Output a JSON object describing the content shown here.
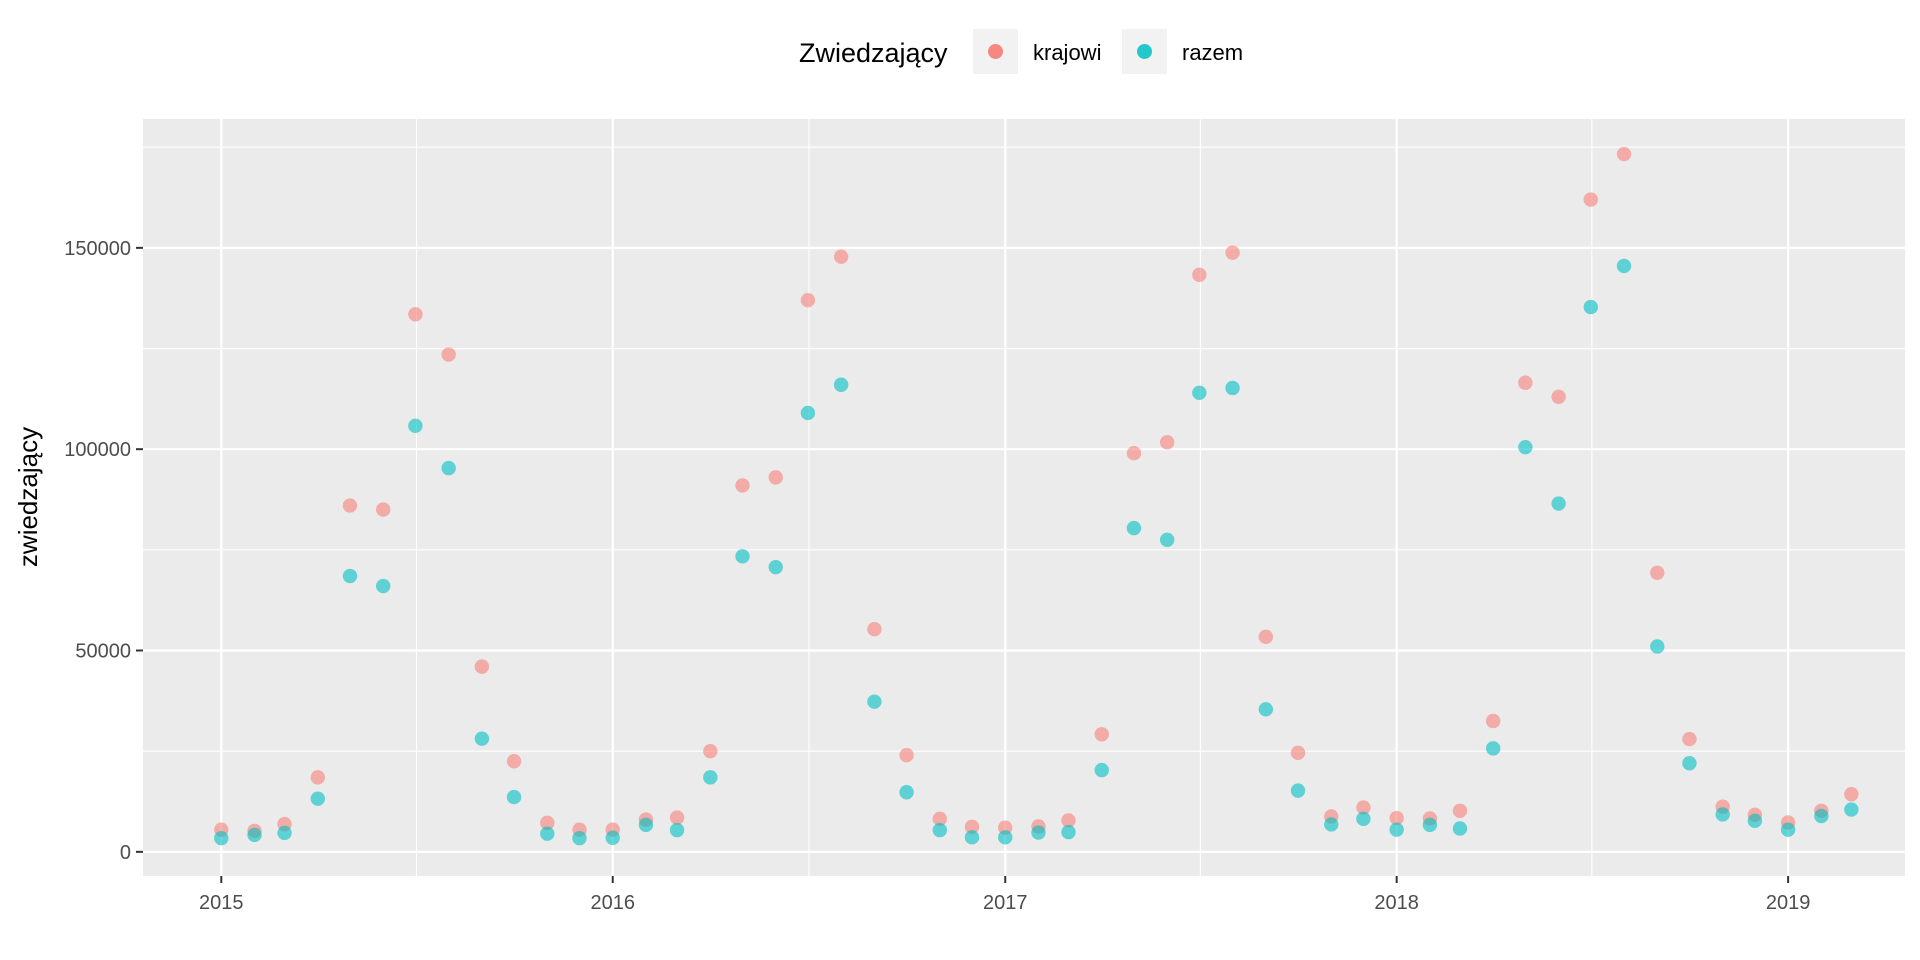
{
  "chart_data": {
    "type": "scatter",
    "title": "",
    "xlabel": "",
    "ylabel": "zwiedzający",
    "legend": {
      "title": "Zwiedzający",
      "position": "top"
    },
    "x_ticks": [
      "2015",
      "2016",
      "2017",
      "2018",
      "2019"
    ],
    "y_ticks": [
      0,
      50000,
      100000,
      150000
    ],
    "y_tick_labels": [
      "0",
      "50000",
      "100000",
      "150000"
    ],
    "xlim": [
      "2014-10-20",
      "2019-04-20"
    ],
    "ylim": [
      -6000,
      182000
    ],
    "grid": true,
    "x": [
      "2015-01",
      "2015-02",
      "2015-03",
      "2015-04",
      "2015-05",
      "2015-06",
      "2015-07",
      "2015-08",
      "2015-09",
      "2015-10",
      "2015-11",
      "2015-12",
      "2016-01",
      "2016-02",
      "2016-03",
      "2016-04",
      "2016-05",
      "2016-06",
      "2016-07",
      "2016-08",
      "2016-09",
      "2016-10",
      "2016-11",
      "2016-12",
      "2017-01",
      "2017-02",
      "2017-03",
      "2017-04",
      "2017-05",
      "2017-06",
      "2017-07",
      "2017-08",
      "2017-09",
      "2017-10",
      "2017-11",
      "2017-12",
      "2018-01",
      "2018-02",
      "2018-03",
      "2018-04",
      "2018-05",
      "2018-06",
      "2018-07",
      "2018-08",
      "2018-09",
      "2018-10",
      "2018-11",
      "2018-12",
      "2019-01",
      "2019-02",
      "2019-03"
    ],
    "series": [
      {
        "name": "krajowi",
        "color": "#F8766D",
        "values": [
          5500,
          5200,
          6900,
          18500,
          86000,
          85000,
          133500,
          123500,
          46000,
          22500,
          7200,
          5500,
          5500,
          8000,
          8500,
          25000,
          91000,
          93000,
          137000,
          147800,
          55300,
          24000,
          8200,
          6200,
          6000,
          6300,
          7800,
          29200,
          99000,
          101700,
          143300,
          148800,
          53400,
          24600,
          8800,
          11000,
          8400,
          8300,
          10200,
          32500,
          116500,
          113000,
          162000,
          173300,
          69300,
          28000,
          11200,
          9200,
          7300,
          10200,
          14300
        ]
      },
      {
        "name": "razem",
        "color": "#00BFC4",
        "values": [
          3400,
          4200,
          4700,
          13200,
          68500,
          66000,
          105800,
          95300,
          28100,
          13600,
          4500,
          3400,
          3500,
          6700,
          5400,
          18500,
          73400,
          70700,
          109000,
          116000,
          37300,
          14800,
          5400,
          3600,
          3600,
          4800,
          4900,
          20300,
          80400,
          77500,
          114000,
          115200,
          35400,
          15200,
          6800,
          8200,
          5500,
          6700,
          5800,
          25700,
          100500,
          86500,
          135300,
          145500,
          51000,
          22000,
          9300,
          7700,
          5500,
          8900,
          10500
        ]
      }
    ]
  }
}
